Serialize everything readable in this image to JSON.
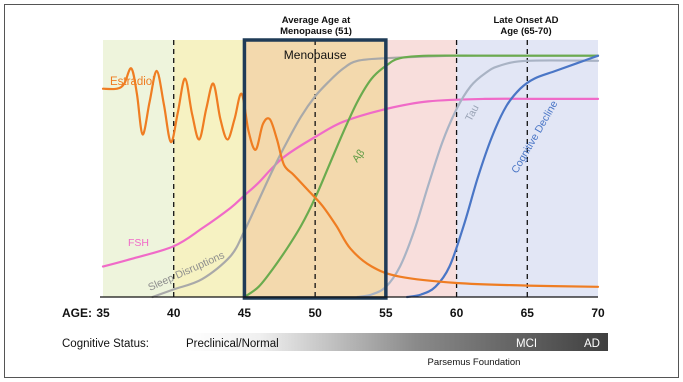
{
  "chart_data": {
    "type": "line",
    "x_axis": {
      "label": "AGE:",
      "ticks": [
        35,
        40,
        45,
        50,
        55,
        60,
        65,
        70
      ],
      "range": [
        35,
        70
      ]
    },
    "regions": [
      {
        "from": 35,
        "to": 40,
        "color": "#eef4dc"
      },
      {
        "from": 40,
        "to": 45,
        "color": "#f6f2c2"
      },
      {
        "from": 45,
        "to": 50,
        "color": "#f3d9ad"
      },
      {
        "from": 50,
        "to": 55,
        "color": "#f3d9ad"
      },
      {
        "from": 55,
        "to": 60,
        "color": "#f8dedc"
      },
      {
        "from": 60,
        "to": 70,
        "color": "#e2e6f5"
      }
    ],
    "dashed_lines": [
      40,
      50,
      60,
      65
    ],
    "annotations": [
      {
        "lines": [
          "Average Age at",
          "Menopause (51)"
        ],
        "at": 50
      },
      {
        "lines": [
          "Late Onset AD",
          "Age (65-70)"
        ],
        "at": 65
      }
    ],
    "highlight_box": {
      "label": "Menopause",
      "from": 45,
      "to": 55,
      "color": "#1f3b57"
    },
    "series": [
      {
        "name": "Estradiol",
        "color": "#ef7d22",
        "points": [
          [
            35,
            0.82
          ],
          [
            36,
            0.82
          ],
          [
            36.5,
            0.84
          ],
          [
            37,
            0.9
          ],
          [
            37.4,
            0.8
          ],
          [
            37.8,
            0.64
          ],
          [
            38.3,
            0.77
          ],
          [
            38.8,
            0.89
          ],
          [
            39.3,
            0.76
          ],
          [
            39.8,
            0.61
          ],
          [
            40.3,
            0.73
          ],
          [
            40.8,
            0.86
          ],
          [
            41.3,
            0.72
          ],
          [
            41.8,
            0.62
          ],
          [
            42.3,
            0.74
          ],
          [
            42.8,
            0.84
          ],
          [
            43.3,
            0.7
          ],
          [
            43.8,
            0.62
          ],
          [
            44.3,
            0.7
          ],
          [
            44.8,
            0.8
          ],
          [
            45.3,
            0.65
          ],
          [
            45.8,
            0.58
          ],
          [
            46.3,
            0.68
          ],
          [
            46.8,
            0.7
          ],
          [
            47.3,
            0.62
          ],
          [
            47.8,
            0.52
          ],
          [
            48.5,
            0.48
          ],
          [
            49.5,
            0.42
          ],
          [
            50.5,
            0.36
          ],
          [
            51.5,
            0.28
          ],
          [
            52.5,
            0.19
          ],
          [
            54,
            0.12
          ],
          [
            56,
            0.08
          ],
          [
            60,
            0.055
          ],
          [
            65,
            0.045
          ],
          [
            70,
            0.04
          ]
        ]
      },
      {
        "name": "FSH",
        "color": "#f06ac8",
        "points": [
          [
            35,
            0.12
          ],
          [
            37,
            0.15
          ],
          [
            40,
            0.2
          ],
          [
            42,
            0.27
          ],
          [
            44,
            0.35
          ],
          [
            45,
            0.4
          ],
          [
            46,
            0.45
          ],
          [
            47,
            0.51
          ],
          [
            48,
            0.56
          ],
          [
            50,
            0.63
          ],
          [
            52,
            0.69
          ],
          [
            55,
            0.74
          ],
          [
            58,
            0.77
          ],
          [
            62,
            0.78
          ],
          [
            66,
            0.78
          ],
          [
            70,
            0.78
          ]
        ]
      },
      {
        "name": "Sleep Disruptions",
        "color": "#a9a9a9",
        "points": [
          [
            38.5,
            0
          ],
          [
            40,
            0.03
          ],
          [
            42,
            0.07
          ],
          [
            44,
            0.16
          ],
          [
            45,
            0.26
          ],
          [
            46,
            0.38
          ],
          [
            47,
            0.5
          ],
          [
            48,
            0.61
          ],
          [
            49,
            0.71
          ],
          [
            50,
            0.79
          ],
          [
            51,
            0.85
          ],
          [
            52,
            0.9
          ],
          [
            53,
            0.93
          ],
          [
            55,
            0.94
          ],
          [
            60,
            0.95
          ],
          [
            65,
            0.95
          ],
          [
            70,
            0.95
          ]
        ]
      },
      {
        "name": "Aβ",
        "color": "#6aab4e",
        "points": [
          [
            45,
            0
          ],
          [
            46,
            0.04
          ],
          [
            47,
            0.11
          ],
          [
            48,
            0.19
          ],
          [
            49,
            0.28
          ],
          [
            50,
            0.39
          ],
          [
            51,
            0.52
          ],
          [
            52,
            0.65
          ],
          [
            53,
            0.77
          ],
          [
            54,
            0.86
          ],
          [
            55,
            0.91
          ],
          [
            56,
            0.94
          ],
          [
            58,
            0.95
          ],
          [
            62,
            0.95
          ],
          [
            66,
            0.95
          ],
          [
            70,
            0.95
          ]
        ]
      },
      {
        "name": "Tau",
        "color": "#a9b3c4",
        "points": [
          [
            53,
            0
          ],
          [
            54,
            0.01
          ],
          [
            55,
            0.04
          ],
          [
            56,
            0.12
          ],
          [
            57,
            0.26
          ],
          [
            58,
            0.44
          ],
          [
            59,
            0.61
          ],
          [
            60,
            0.74
          ],
          [
            61,
            0.83
          ],
          [
            62,
            0.88
          ],
          [
            63,
            0.91
          ],
          [
            65,
            0.93
          ],
          [
            70,
            0.93
          ]
        ]
      },
      {
        "name": "Cognitive Decline",
        "color": "#4a76c6",
        "points": [
          [
            56.5,
            0
          ],
          [
            57.5,
            0.01
          ],
          [
            58.5,
            0.04
          ],
          [
            59.5,
            0.12
          ],
          [
            60.5,
            0.28
          ],
          [
            61.5,
            0.47
          ],
          [
            62.5,
            0.63
          ],
          [
            63.5,
            0.75
          ],
          [
            64.5,
            0.82
          ],
          [
            65.5,
            0.86
          ],
          [
            67,
            0.89
          ],
          [
            68.5,
            0.92
          ],
          [
            70,
            0.95
          ]
        ]
      }
    ],
    "grid": false,
    "cognitive_status": {
      "title": "Cognitive Status:",
      "stages": [
        {
          "label": "Preclinical/Normal",
          "at": 35
        },
        {
          "label": "MCI",
          "at": 61
        },
        {
          "label": "AD",
          "at": 68
        }
      ]
    },
    "credit": "Parsemus Foundation"
  }
}
